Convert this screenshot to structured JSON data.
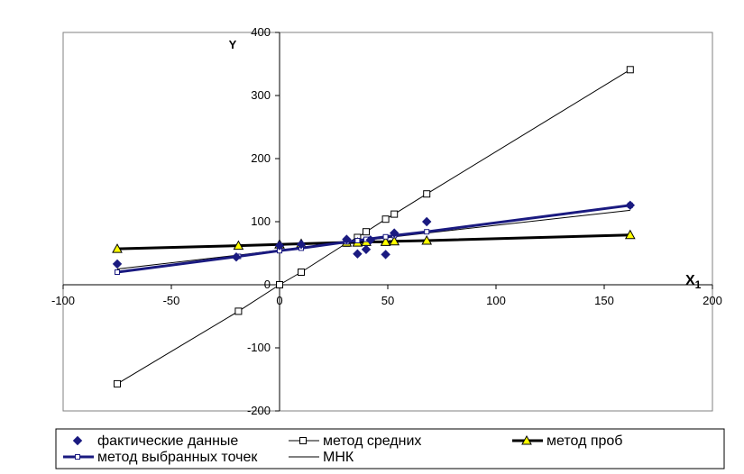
{
  "chart_data": {
    "type": "scatter",
    "title": "",
    "xlabel": "X",
    "xlabel_sub": "1",
    "ylabel": "Y",
    "xlim": [
      -100,
      200
    ],
    "ylim": [
      -200,
      400
    ],
    "x_ticks": [
      -100,
      -50,
      0,
      50,
      100,
      150,
      200
    ],
    "y_ticks": [
      -200,
      -100,
      0,
      100,
      200,
      300,
      400
    ],
    "grid": false,
    "legend_position": "bottom",
    "series": [
      {
        "name": "фактические данные",
        "style": "markers",
        "marker": "diamond",
        "color": "#1a1a80",
        "points": [
          [
            -75,
            33
          ],
          [
            -20,
            44
          ],
          [
            0,
            62
          ],
          [
            10,
            64
          ],
          [
            31,
            72
          ],
          [
            36,
            49
          ],
          [
            40,
            56
          ],
          [
            42,
            71
          ],
          [
            49,
            48
          ],
          [
            53,
            82
          ],
          [
            68,
            100
          ],
          [
            162,
            126
          ]
        ]
      },
      {
        "name": "метод средних",
        "style": "line-markers",
        "marker": "square",
        "color": "#000000",
        "line_width": 1,
        "points": [
          [
            -75,
            -157
          ],
          [
            -19,
            -42
          ],
          [
            0,
            0
          ],
          [
            10,
            20
          ],
          [
            31,
            66
          ],
          [
            36,
            75
          ],
          [
            40,
            84
          ],
          [
            49,
            104
          ],
          [
            53,
            112
          ],
          [
            68,
            144
          ],
          [
            162,
            341
          ]
        ]
      },
      {
        "name": "метод проб",
        "style": "line-markers",
        "marker": "triangle",
        "color": "#000000",
        "marker_fill": "#ffff00",
        "line_width": 3,
        "points": [
          [
            -75,
            57
          ],
          [
            -19,
            62
          ],
          [
            0,
            64
          ],
          [
            10,
            65
          ],
          [
            31,
            67
          ],
          [
            36,
            67
          ],
          [
            40,
            68
          ],
          [
            49,
            68
          ],
          [
            53,
            69
          ],
          [
            68,
            70
          ],
          [
            162,
            79
          ]
        ]
      },
      {
        "name": "метод выбранных точек",
        "style": "line-markers",
        "marker": "square-small",
        "color": "#1a1a80",
        "line_width": 3,
        "points": [
          [
            -75,
            20
          ],
          [
            -19,
            45
          ],
          [
            0,
            54
          ],
          [
            10,
            58
          ],
          [
            31,
            68
          ],
          [
            36,
            70
          ],
          [
            40,
            72
          ],
          [
            49,
            76
          ],
          [
            53,
            78
          ],
          [
            68,
            84
          ],
          [
            162,
            126
          ]
        ]
      },
      {
        "name": "МНК",
        "style": "line",
        "color": "#000000",
        "line_width": 1,
        "points": [
          [
            -75,
            25
          ],
          [
            -19,
            47
          ],
          [
            0,
            55
          ],
          [
            10,
            59
          ],
          [
            31,
            67
          ],
          [
            36,
            69
          ],
          [
            40,
            71
          ],
          [
            49,
            74
          ],
          [
            53,
            76
          ],
          [
            68,
            82
          ],
          [
            162,
            118
          ]
        ]
      }
    ]
  }
}
